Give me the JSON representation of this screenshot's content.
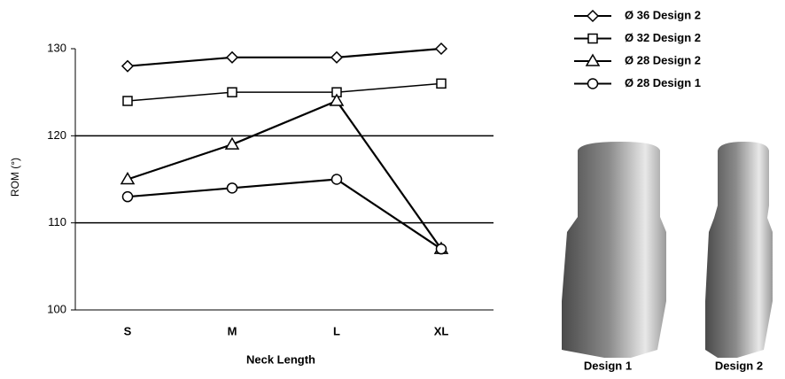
{
  "chart_data": {
    "type": "line",
    "categories": [
      "S",
      "M",
      "L",
      "XL"
    ],
    "x_label": "Neck Length",
    "y_label": "ROM (°)",
    "ylim": [
      100,
      130
    ],
    "yticks": [
      100,
      110,
      120,
      130
    ],
    "grid": true,
    "series": [
      {
        "name": "Ø 36 Design 2",
        "color": "#000000",
        "marker": "diamond",
        "values": [
          128,
          129,
          129,
          130
        ]
      },
      {
        "name": "Ø 32 Design 2",
        "color": "#000000",
        "marker": "square",
        "values": [
          124,
          125,
          125,
          126
        ]
      },
      {
        "name": "Ø 28 Design 2",
        "color": "#000000",
        "marker": "triangle",
        "values": [
          115,
          119,
          124,
          107
        ]
      },
      {
        "name": "Ø 28 Design 1",
        "color": "#000000",
        "marker": "circle",
        "values": [
          113,
          114,
          115,
          107
        ]
      }
    ]
  },
  "figures": {
    "labels": [
      "Design 1",
      "Design 2"
    ]
  }
}
